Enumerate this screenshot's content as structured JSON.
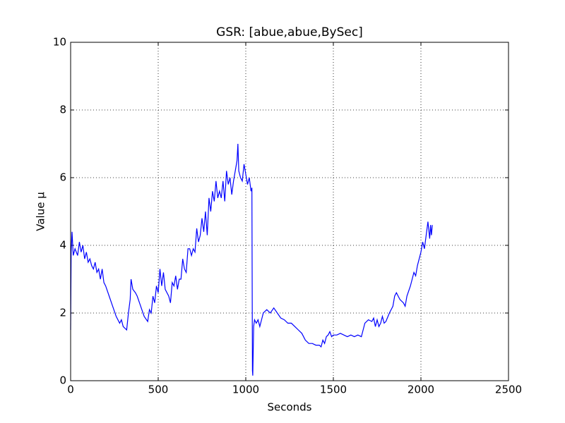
{
  "chart_data": {
    "type": "line",
    "title": "GSR: [abue,abue,BySec]",
    "xlabel": "Seconds",
    "ylabel": "Value µ",
    "xlim": [
      0,
      2500
    ],
    "ylim": [
      0,
      10
    ],
    "xticks": [
      0,
      500,
      1000,
      1500,
      2000,
      2500
    ],
    "yticks": [
      0,
      2,
      4,
      6,
      8,
      10
    ],
    "grid": true,
    "series": [
      {
        "color": "#0000ff",
        "x": [
          0,
          3,
          8,
          15,
          25,
          40,
          50,
          60,
          70,
          80,
          90,
          100,
          110,
          120,
          130,
          140,
          150,
          160,
          170,
          180,
          190,
          200,
          220,
          240,
          260,
          280,
          290,
          300,
          320,
          330,
          340,
          345,
          355,
          370,
          380,
          400,
          420,
          440,
          450,
          460,
          470,
          480,
          490,
          500,
          510,
          520,
          530,
          540,
          560,
          570,
          580,
          590,
          600,
          610,
          620,
          630,
          640,
          650,
          660,
          670,
          680,
          690,
          700,
          710,
          720,
          730,
          740,
          750,
          760,
          770,
          780,
          790,
          800,
          810,
          820,
          830,
          840,
          850,
          860,
          870,
          880,
          890,
          900,
          910,
          920,
          930,
          940,
          950,
          955,
          960,
          970,
          980,
          990,
          1000,
          1010,
          1020,
          1030,
          1035,
          1038,
          1040,
          1045,
          1050,
          1060,
          1070,
          1080,
          1090,
          1100,
          1120,
          1140,
          1160,
          1180,
          1200,
          1220,
          1240,
          1260,
          1280,
          1300,
          1320,
          1340,
          1360,
          1380,
          1400,
          1420,
          1430,
          1440,
          1450,
          1460,
          1470,
          1480,
          1490,
          1500,
          1520,
          1540,
          1560,
          1580,
          1600,
          1620,
          1640,
          1660,
          1670,
          1680,
          1700,
          1720,
          1730,
          1740,
          1750,
          1760,
          1770,
          1780,
          1790,
          1800,
          1820,
          1840,
          1850,
          1860,
          1870,
          1880,
          1900,
          1910,
          1920,
          1940,
          1950,
          1960,
          1970,
          1980,
          1990,
          2000,
          2010,
          2020,
          2030,
          2040,
          2050,
          2055,
          2060,
          2065
        ],
        "values": [
          1.5,
          3.8,
          4.4,
          3.7,
          3.9,
          3.7,
          4.1,
          3.8,
          4.0,
          3.6,
          3.8,
          3.5,
          3.6,
          3.4,
          3.3,
          3.5,
          3.2,
          3.3,
          3.0,
          3.3,
          2.9,
          2.8,
          2.5,
          2.2,
          1.9,
          1.7,
          1.8,
          1.6,
          1.5,
          2.0,
          2.4,
          3.0,
          2.7,
          2.6,
          2.5,
          2.2,
          1.9,
          1.75,
          2.1,
          2.0,
          2.5,
          2.3,
          2.8,
          2.6,
          3.3,
          2.8,
          3.2,
          2.7,
          2.5,
          2.3,
          2.9,
          2.8,
          3.1,
          2.7,
          3.0,
          3.0,
          3.6,
          3.3,
          3.2,
          3.9,
          3.9,
          3.7,
          3.9,
          3.8,
          4.5,
          4.1,
          4.3,
          4.8,
          4.4,
          5.0,
          4.3,
          5.4,
          5.0,
          5.6,
          5.3,
          5.9,
          5.4,
          5.6,
          5.4,
          5.9,
          5.3,
          6.2,
          5.8,
          6.0,
          5.5,
          5.9,
          6.2,
          6.5,
          7.0,
          6.2,
          6.0,
          5.9,
          6.4,
          6.1,
          5.8,
          6.0,
          5.6,
          5.7,
          0.3,
          0.15,
          1.6,
          1.8,
          1.7,
          1.8,
          1.6,
          1.8,
          2.0,
          2.1,
          2.0,
          2.15,
          2.0,
          1.85,
          1.8,
          1.7,
          1.7,
          1.6,
          1.5,
          1.4,
          1.2,
          1.1,
          1.1,
          1.05,
          1.05,
          1.0,
          1.2,
          1.1,
          1.3,
          1.35,
          1.45,
          1.3,
          1.35,
          1.35,
          1.4,
          1.35,
          1.3,
          1.35,
          1.3,
          1.35,
          1.3,
          1.5,
          1.7,
          1.8,
          1.75,
          1.85,
          1.6,
          1.8,
          1.6,
          1.7,
          1.9,
          1.7,
          1.75,
          2.0,
          2.2,
          2.5,
          2.6,
          2.5,
          2.4,
          2.3,
          2.2,
          2.5,
          2.8,
          3.0,
          3.2,
          3.1,
          3.4,
          3.6,
          3.8,
          4.1,
          3.9,
          4.3,
          4.7,
          4.2,
          4.6,
          4.3,
          4.6
        ]
      }
    ]
  }
}
